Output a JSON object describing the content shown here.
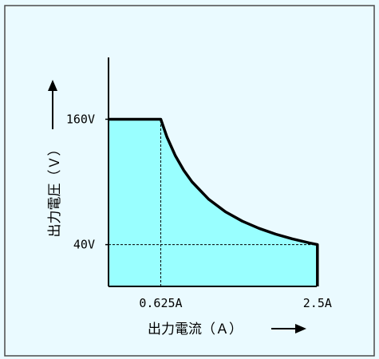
{
  "chart_data": {
    "type": "area",
    "title": "",
    "xlabel": "出力電流（Ａ）",
    "ylabel": "出力電圧（Ｖ）",
    "x_ticks": [
      {
        "value": 0.625,
        "label": "0.625A"
      },
      {
        "value": 2.5,
        "label": "2.5A"
      }
    ],
    "y_ticks": [
      {
        "value": 160,
        "label": "160V"
      },
      {
        "value": 40,
        "label": "40V"
      }
    ],
    "xlim": [
      0,
      3.25
    ],
    "ylim": [
      0,
      210
    ],
    "series": [
      {
        "x": [
          0,
          0.625,
          0.7,
          0.8,
          0.9,
          1.0,
          1.2,
          1.4,
          1.6,
          1.8,
          2.0,
          2.2,
          2.4,
          2.5,
          2.5
        ],
        "y": [
          160,
          160,
          142.9,
          125,
          111.1,
          100,
          83.3,
          71.4,
          62.5,
          55.6,
          50,
          45.5,
          41.7,
          40,
          0
        ]
      }
    ],
    "reference_lines": [
      {
        "orientation": "vertical",
        "x": 0.625,
        "y_from": 0,
        "y_to": 160,
        "style": "dashed"
      },
      {
        "orientation": "horizontal",
        "y": 40,
        "x_from": 0,
        "x_to": 2.5,
        "style": "dashed"
      }
    ],
    "colors": {
      "fill": "#99FFFF",
      "frame_background": "#EAFAFF",
      "frame_border": "#4A4A4A",
      "line": "#000000"
    },
    "grid": false
  }
}
